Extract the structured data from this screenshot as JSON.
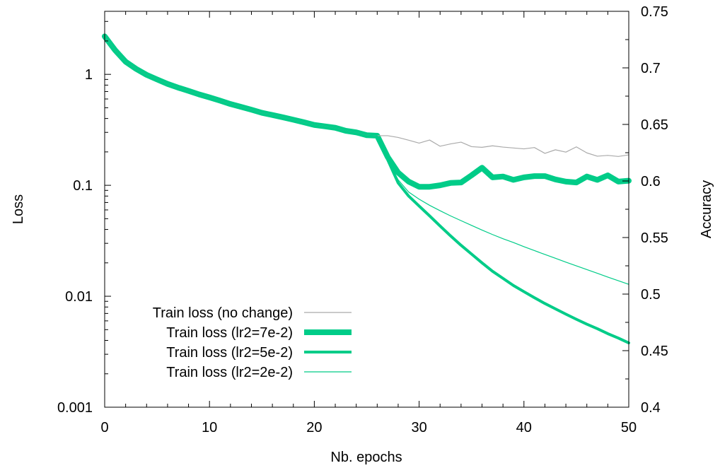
{
  "chart_data": {
    "type": "line",
    "xlabel": "Nb. epochs",
    "ylabel": "Loss",
    "y2label": "Accuracy",
    "xlim": [
      0,
      50
    ],
    "ylim": [
      0.001,
      3.7
    ],
    "yscale": "log",
    "y2lim": [
      0.4,
      0.75
    ],
    "grid": false,
    "legend_position": "bottom-left",
    "x_ticks": [
      {
        "value": 0,
        "label": "0"
      },
      {
        "value": 10,
        "label": "10"
      },
      {
        "value": 20,
        "label": "20"
      },
      {
        "value": 30,
        "label": "30"
      },
      {
        "value": 40,
        "label": "40"
      },
      {
        "value": 50,
        "label": "50"
      }
    ],
    "y_ticks": [
      {
        "value": 1,
        "label": "1"
      },
      {
        "value": 0.1,
        "label": "0.1"
      },
      {
        "value": 0.01,
        "label": "0.01"
      },
      {
        "value": 0.001,
        "label": "0.001"
      }
    ],
    "y2_ticks": [
      {
        "value": 0.4,
        "label": "0.4"
      },
      {
        "value": 0.45,
        "label": "0.45"
      },
      {
        "value": 0.5,
        "label": "0.5"
      },
      {
        "value": 0.55,
        "label": "0.55"
      },
      {
        "value": 0.6,
        "label": "0.6"
      },
      {
        "value": 0.65,
        "label": "0.65"
      },
      {
        "value": 0.7,
        "label": "0.7"
      },
      {
        "value": 0.75,
        "label": "0.75"
      }
    ],
    "series": [
      {
        "name": "Train loss (no change)",
        "color": "#aaaaaa",
        "line_width": 1.2,
        "x": [
          0,
          1,
          2,
          3,
          4,
          5,
          6,
          7,
          8,
          9,
          10,
          11,
          12,
          13,
          14,
          15,
          16,
          17,
          18,
          19,
          20,
          21,
          22,
          23,
          24,
          25,
          26,
          27,
          28,
          29,
          30,
          31,
          32,
          33,
          34,
          35,
          36,
          37,
          38,
          39,
          40,
          41,
          42,
          43,
          44,
          45,
          46,
          47,
          48,
          49,
          50
        ],
        "y": [
          2.2,
          1.65,
          1.3,
          1.12,
          0.99,
          0.9,
          0.82,
          0.76,
          0.71,
          0.66,
          0.62,
          0.58,
          0.54,
          0.51,
          0.48,
          0.45,
          0.43,
          0.41,
          0.39,
          0.37,
          0.35,
          0.34,
          0.33,
          0.31,
          0.3,
          0.283,
          0.28,
          0.28,
          0.27,
          0.255,
          0.24,
          0.256,
          0.225,
          0.236,
          0.245,
          0.223,
          0.22,
          0.227,
          0.221,
          0.217,
          0.213,
          0.219,
          0.194,
          0.209,
          0.199,
          0.222,
          0.196,
          0.183,
          0.186,
          0.182,
          0.188
        ]
      },
      {
        "name": "Train loss (lr2=7e-2)",
        "color": "#00cc88",
        "line_width": 8,
        "x": [
          0,
          1,
          2,
          3,
          4,
          5,
          6,
          7,
          8,
          9,
          10,
          11,
          12,
          13,
          14,
          15,
          16,
          17,
          18,
          19,
          20,
          21,
          22,
          23,
          24,
          25,
          26,
          27,
          28,
          29,
          30,
          31,
          32,
          33,
          34,
          35,
          36,
          37,
          38,
          39,
          40,
          41,
          42,
          43,
          44,
          45,
          46,
          47,
          48,
          49,
          50
        ],
        "y": [
          2.2,
          1.65,
          1.3,
          1.12,
          0.99,
          0.9,
          0.82,
          0.76,
          0.71,
          0.66,
          0.62,
          0.58,
          0.54,
          0.51,
          0.48,
          0.45,
          0.43,
          0.41,
          0.39,
          0.37,
          0.35,
          0.34,
          0.33,
          0.31,
          0.3,
          0.283,
          0.28,
          0.18,
          0.13,
          0.108,
          0.097,
          0.097,
          0.1,
          0.105,
          0.106,
          0.123,
          0.144,
          0.118,
          0.12,
          0.112,
          0.118,
          0.121,
          0.121,
          0.113,
          0.108,
          0.106,
          0.12,
          0.112,
          0.123,
          0.108,
          0.11
        ]
      },
      {
        "name": "Train loss (lr2=5e-2)",
        "color": "#00cc88",
        "line_width": 4,
        "x": [
          0,
          1,
          2,
          3,
          4,
          5,
          6,
          7,
          8,
          9,
          10,
          11,
          12,
          13,
          14,
          15,
          16,
          17,
          18,
          19,
          20,
          21,
          22,
          23,
          24,
          25,
          26,
          27,
          28,
          29,
          30,
          31,
          32,
          33,
          34,
          35,
          36,
          37,
          38,
          39,
          40,
          41,
          42,
          43,
          44,
          45,
          46,
          47,
          48,
          49,
          50
        ],
        "y": [
          2.2,
          1.65,
          1.3,
          1.12,
          0.99,
          0.9,
          0.82,
          0.76,
          0.71,
          0.66,
          0.62,
          0.58,
          0.54,
          0.51,
          0.48,
          0.45,
          0.43,
          0.41,
          0.39,
          0.37,
          0.35,
          0.34,
          0.33,
          0.31,
          0.3,
          0.283,
          0.28,
          0.17,
          0.105,
          0.08,
          0.065,
          0.053,
          0.043,
          0.035,
          0.0288,
          0.024,
          0.02,
          0.0168,
          0.0145,
          0.0125,
          0.011,
          0.0097,
          0.0086,
          0.0077,
          0.0069,
          0.0062,
          0.0056,
          0.0051,
          0.0046,
          0.0042,
          0.0038
        ]
      },
      {
        "name": "Train loss (lr2=2e-2)",
        "color": "#00cc88",
        "line_width": 1.2,
        "x": [
          0,
          1,
          2,
          3,
          4,
          5,
          6,
          7,
          8,
          9,
          10,
          11,
          12,
          13,
          14,
          15,
          16,
          17,
          18,
          19,
          20,
          21,
          22,
          23,
          24,
          25,
          26,
          27,
          28,
          29,
          30,
          31,
          32,
          33,
          34,
          35,
          36,
          37,
          38,
          39,
          40,
          41,
          42,
          43,
          44,
          45,
          46,
          47,
          48,
          49,
          50
        ],
        "y": [
          2.2,
          1.65,
          1.3,
          1.12,
          0.99,
          0.9,
          0.82,
          0.76,
          0.71,
          0.66,
          0.62,
          0.58,
          0.54,
          0.51,
          0.48,
          0.45,
          0.43,
          0.41,
          0.39,
          0.37,
          0.35,
          0.34,
          0.33,
          0.31,
          0.3,
          0.283,
          0.28,
          0.17,
          0.112,
          0.087,
          0.075,
          0.066,
          0.059,
          0.053,
          0.048,
          0.0435,
          0.0395,
          0.036,
          0.033,
          0.0305,
          0.028,
          0.0258,
          0.0238,
          0.022,
          0.0203,
          0.0188,
          0.0174,
          0.0161,
          0.0149,
          0.0138,
          0.0128
        ]
      }
    ]
  }
}
